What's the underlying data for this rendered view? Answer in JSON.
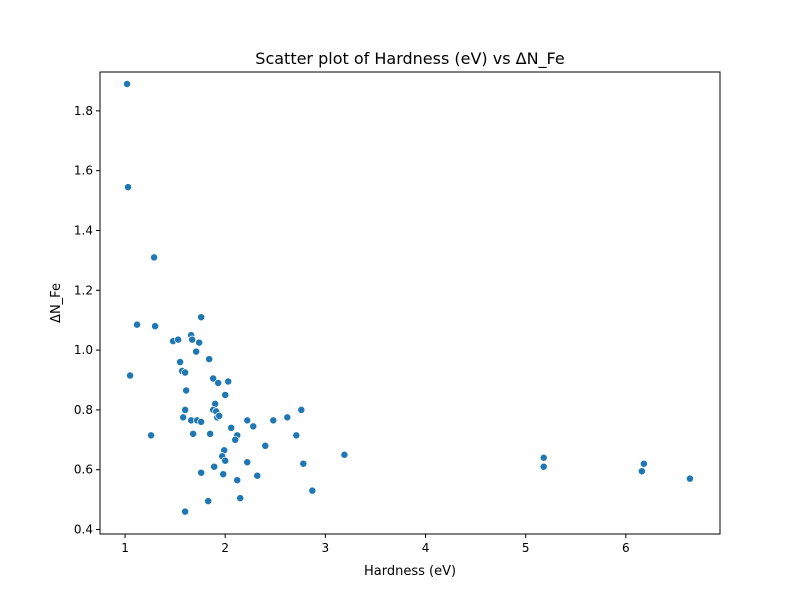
{
  "chart_data": {
    "type": "scatter",
    "title": "Scatter plot of Hardness  (eV) vs  ΔN_Fe",
    "xlabel": "Hardness  (eV)",
    "ylabel": "ΔN_Fe",
    "xlim": [
      0.75,
      6.94
    ],
    "ylim": [
      0.385,
      1.93
    ],
    "xticks": [
      1,
      2,
      3,
      4,
      5,
      6
    ],
    "yticks": [
      0.4,
      0.6,
      0.8,
      1.0,
      1.2,
      1.4,
      1.6,
      1.8
    ],
    "xtick_labels": [
      "1",
      "2",
      "3",
      "4",
      "5",
      "6"
    ],
    "ytick_labels": [
      "0.4",
      "0.6",
      "0.8",
      "1.0",
      "1.2",
      "1.4",
      "1.6",
      "1.8"
    ],
    "grid": false,
    "marker_color": "#1f77b4",
    "points": [
      {
        "x": 1.02,
        "y": 1.89
      },
      {
        "x": 1.03,
        "y": 1.545
      },
      {
        "x": 1.29,
        "y": 1.31
      },
      {
        "x": 1.12,
        "y": 1.085
      },
      {
        "x": 1.3,
        "y": 1.08
      },
      {
        "x": 1.05,
        "y": 0.915
      },
      {
        "x": 1.26,
        "y": 0.715
      },
      {
        "x": 1.48,
        "y": 1.03
      },
      {
        "x": 1.53,
        "y": 1.035
      },
      {
        "x": 1.66,
        "y": 1.05
      },
      {
        "x": 1.67,
        "y": 1.035
      },
      {
        "x": 1.76,
        "y": 1.11
      },
      {
        "x": 1.74,
        "y": 1.025
      },
      {
        "x": 1.71,
        "y": 0.995
      },
      {
        "x": 1.55,
        "y": 0.96
      },
      {
        "x": 1.57,
        "y": 0.93
      },
      {
        "x": 1.6,
        "y": 0.925
      },
      {
        "x": 1.84,
        "y": 0.97
      },
      {
        "x": 1.61,
        "y": 0.865
      },
      {
        "x": 1.88,
        "y": 0.905
      },
      {
        "x": 1.93,
        "y": 0.89
      },
      {
        "x": 2.03,
        "y": 0.895
      },
      {
        "x": 2.0,
        "y": 0.85
      },
      {
        "x": 1.9,
        "y": 0.82
      },
      {
        "x": 1.6,
        "y": 0.8
      },
      {
        "x": 1.88,
        "y": 0.8
      },
      {
        "x": 1.91,
        "y": 0.795
      },
      {
        "x": 1.58,
        "y": 0.775
      },
      {
        "x": 1.66,
        "y": 0.765
      },
      {
        "x": 1.72,
        "y": 0.765
      },
      {
        "x": 1.76,
        "y": 0.76
      },
      {
        "x": 1.92,
        "y": 0.775
      },
      {
        "x": 1.94,
        "y": 0.78
      },
      {
        "x": 1.68,
        "y": 0.72
      },
      {
        "x": 1.85,
        "y": 0.72
      },
      {
        "x": 2.06,
        "y": 0.74
      },
      {
        "x": 2.12,
        "y": 0.715
      },
      {
        "x": 2.1,
        "y": 0.7
      },
      {
        "x": 2.22,
        "y": 0.765
      },
      {
        "x": 2.28,
        "y": 0.745
      },
      {
        "x": 2.48,
        "y": 0.765
      },
      {
        "x": 2.62,
        "y": 0.775
      },
      {
        "x": 2.76,
        "y": 0.8
      },
      {
        "x": 2.71,
        "y": 0.715
      },
      {
        "x": 2.4,
        "y": 0.68
      },
      {
        "x": 1.99,
        "y": 0.665
      },
      {
        "x": 1.97,
        "y": 0.645
      },
      {
        "x": 2.0,
        "y": 0.63
      },
      {
        "x": 2.22,
        "y": 0.625
      },
      {
        "x": 2.78,
        "y": 0.62
      },
      {
        "x": 1.89,
        "y": 0.61
      },
      {
        "x": 1.98,
        "y": 0.585
      },
      {
        "x": 1.76,
        "y": 0.59
      },
      {
        "x": 2.32,
        "y": 0.58
      },
      {
        "x": 2.12,
        "y": 0.565
      },
      {
        "x": 2.87,
        "y": 0.53
      },
      {
        "x": 2.15,
        "y": 0.505
      },
      {
        "x": 1.83,
        "y": 0.495
      },
      {
        "x": 1.6,
        "y": 0.46
      },
      {
        "x": 3.19,
        "y": 0.65
      },
      {
        "x": 5.18,
        "y": 0.64
      },
      {
        "x": 5.18,
        "y": 0.61
      },
      {
        "x": 6.18,
        "y": 0.62
      },
      {
        "x": 6.16,
        "y": 0.595
      },
      {
        "x": 6.64,
        "y": 0.57
      }
    ]
  }
}
